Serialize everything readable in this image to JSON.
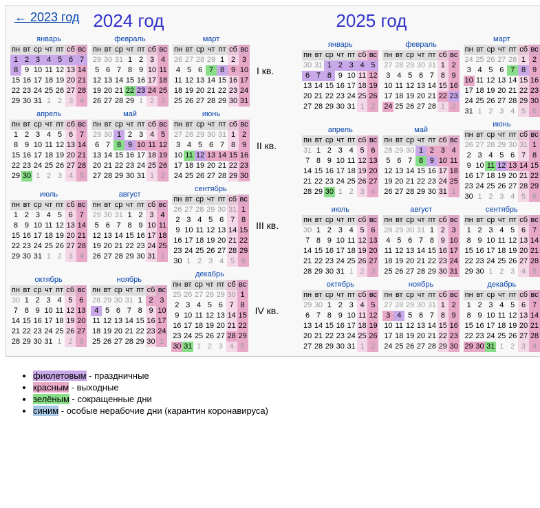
{
  "back_link": "← 2023 год",
  "year1_title": "2024 год",
  "year2_title": "2025 год",
  "dow": [
    "пн",
    "вт",
    "ср",
    "чт",
    "пт",
    "сб",
    "вс"
  ],
  "quarter_labels": [
    "I кв.",
    "II кв.",
    "III кв.",
    "IV кв."
  ],
  "months_ru": [
    "январь",
    "февраль",
    "март",
    "апрель",
    "май",
    "июнь",
    "июль",
    "август",
    "сентябрь",
    "октябрь",
    "ноябрь",
    "декабрь"
  ],
  "legend": {
    "violet": "фиолетовым",
    "violet_text": " - праздничные",
    "red": "красным",
    "red_text": " - выходные",
    "green": "зелёным",
    "green_text": " - сокращенные дни",
    "blue": "синим",
    "blue_text": " - особые нерабочие дни (карантин коронавируса)"
  },
  "colors": {
    "holiday": "#c8a8e8",
    "weekend_sat": "#f5d8e8",
    "weekend_sun": "#e8a8c8",
    "short_day": "#88dd88",
    "dow_bg": "#ddd",
    "link": "#0645ad",
    "year_title": "#3333cc"
  },
  "calendars": {
    "2024": {
      "start_dow": [
        0,
        3,
        4,
        0,
        2,
        5,
        0,
        3,
        6,
        1,
        4,
        6
      ],
      "days_in_month": [
        31,
        29,
        31,
        30,
        31,
        30,
        31,
        31,
        30,
        31,
        30,
        31
      ],
      "holidays": {
        "1": [
          1,
          2,
          3,
          4,
          5,
          6,
          7,
          8
        ],
        "2": [
          23
        ],
        "3": [
          8
        ],
        "5": [
          1,
          9
        ],
        "6": [
          12
        ],
        "11": [
          4
        ]
      },
      "short_days": {
        "2": [
          22
        ],
        "3": [
          7
        ],
        "4": [
          30
        ],
        "5": [
          8
        ],
        "6": [
          11
        ],
        "12": [
          31
        ]
      },
      "extra_weekends": {
        "2": [
          24,
          25
        ],
        "3": [
          9,
          10
        ],
        "5": [
          10,
          11,
          12
        ],
        "6": [
          13,
          14,
          15,
          16
        ],
        "11": [
          2,
          3
        ],
        "12": [
          28,
          29,
          30
        ]
      }
    },
    "2025": {
      "start_dow": [
        2,
        5,
        5,
        1,
        3,
        6,
        1,
        4,
        0,
        2,
        5,
        0
      ],
      "days_in_month": [
        31,
        28,
        31,
        30,
        31,
        30,
        31,
        31,
        30,
        31,
        30,
        31
      ],
      "holidays": {
        "1": [
          1,
          2,
          3,
          4,
          5,
          6,
          7,
          8
        ],
        "2": [
          23
        ],
        "3": [
          8
        ],
        "5": [
          1,
          9
        ],
        "6": [
          12
        ],
        "11": [
          4
        ]
      },
      "short_days": {
        "3": [
          7
        ],
        "4": [
          30
        ],
        "5": [
          8
        ],
        "6": [
          11
        ],
        "12": [
          31
        ]
      },
      "extra_weekends": {
        "2": [
          22,
          24
        ],
        "3": [
          9,
          10
        ],
        "5": [
          2,
          3,
          4,
          10,
          11
        ],
        "6": [
          13,
          14,
          15
        ],
        "11": [
          2,
          3
        ],
        "12": [
          29,
          30
        ]
      }
    }
  }
}
